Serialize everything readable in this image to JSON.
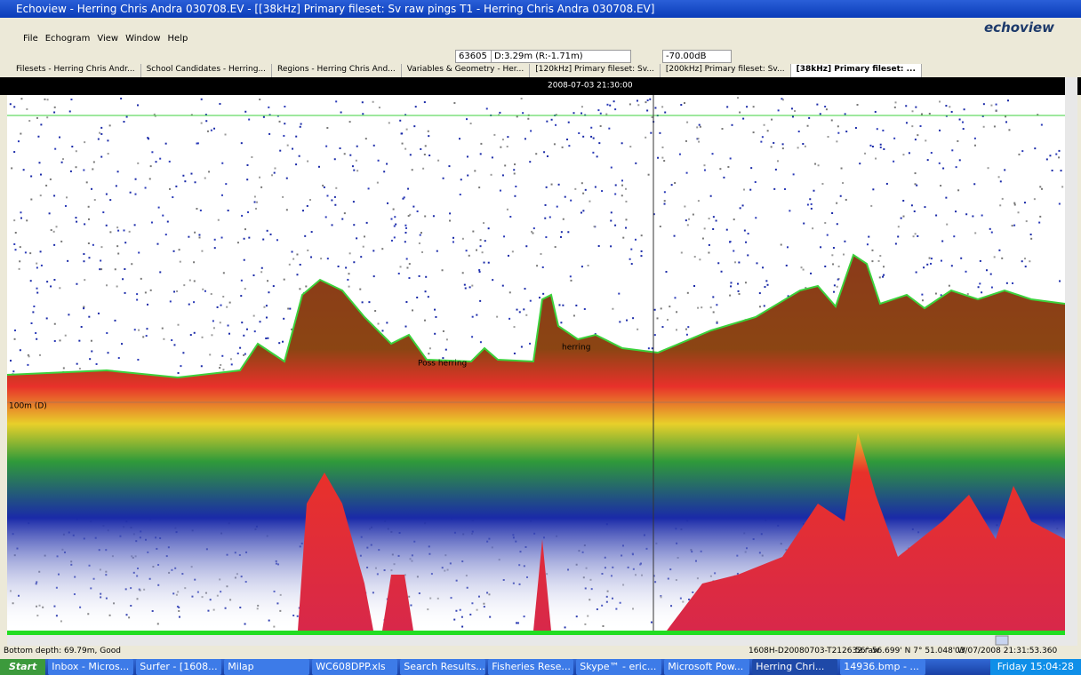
{
  "window": {
    "title": "Echoview - Herring Chris Andra 030708.EV - [[38kHz] Primary fileset: Sv raw pings T1 - Herring Chris Andra 030708.EV]",
    "logo": "echoview"
  },
  "menu": [
    "File",
    "Echogram",
    "View",
    "Window",
    "Help"
  ],
  "toolbar": {
    "ping": "63605",
    "depth": "D:3.29m (R:-1.71m)",
    "threshold": "-70.00dB"
  },
  "tabs": [
    "Filesets - Herring Chris Andr...",
    "School Candidates - Herring...",
    "Regions - Herring Chris And...",
    "Variables & Geometry - Her...",
    "[120kHz] Primary fileset: Sv...",
    "[200kHz] Primary fileset: Sv...",
    "[38kHz] Primary fileset: ..."
  ],
  "echogram": {
    "timestamp": "2008-07-03 21:30:00",
    "depth_label": "100m (D)",
    "region_labels": [
      "Poss herring",
      "herring"
    ]
  },
  "status": [
    "Bottom depth: 69.79m, Good",
    "1608H-D20080703-T212632.raw",
    "56° 56.699' N 7° 51.048' W",
    "03/07/2008 21:31:53.360"
  ],
  "taskbar": {
    "start": "Start",
    "items": [
      "Inbox - Micros...",
      "Surfer - [1608...",
      "Milap",
      "WC608DPP.xls",
      "Search Results...",
      "Fisheries Rese...",
      "Skype™ - eric...",
      "Microsoft Pow...",
      "Herring Chri...",
      "14936.bmp - ..."
    ],
    "clock": "Friday 15:04:28"
  }
}
